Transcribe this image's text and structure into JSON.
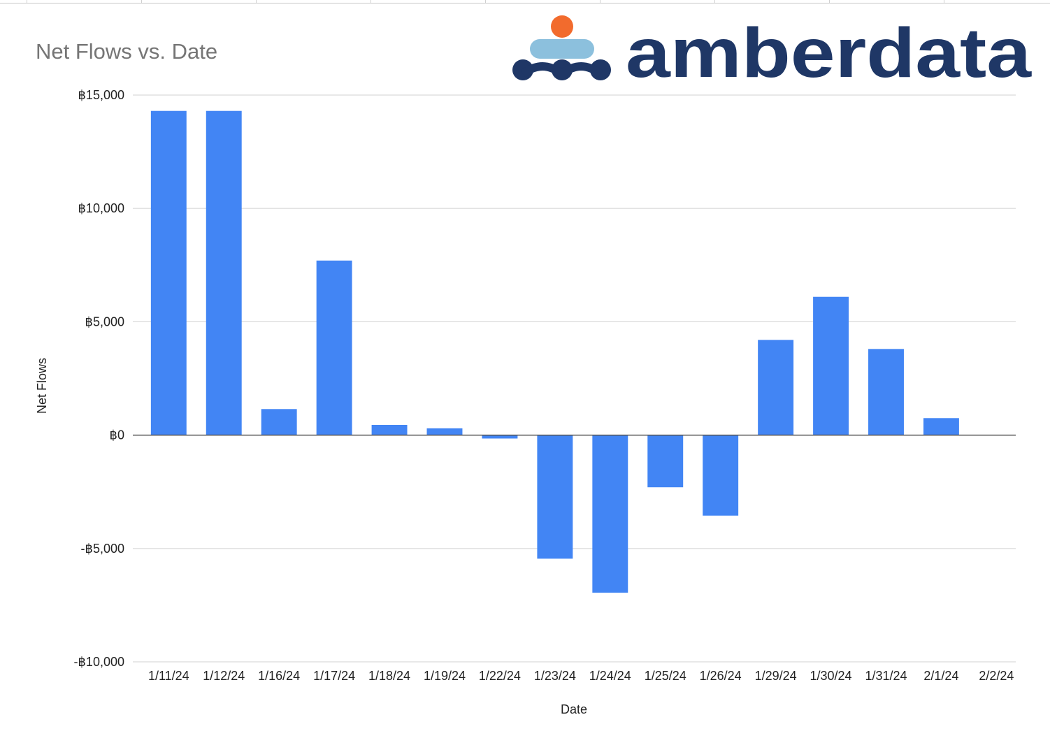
{
  "chart_data": {
    "type": "bar",
    "title": "Net Flows vs. Date",
    "xlabel": "Date",
    "ylabel": "Net Flows",
    "ylim": [
      -10000,
      15000
    ],
    "yticks": [
      15000,
      10000,
      5000,
      0,
      -5000,
      -10000
    ],
    "ytick_labels": [
      "฿15,000",
      "฿10,000",
      "฿5,000",
      "฿0",
      "-฿5,000",
      "-฿10,000"
    ],
    "categories": [
      "1/11/24",
      "1/12/24",
      "1/16/24",
      "1/17/24",
      "1/18/24",
      "1/19/24",
      "1/22/24",
      "1/23/24",
      "1/24/24",
      "1/25/24",
      "1/26/24",
      "1/29/24",
      "1/30/24",
      "1/31/24",
      "2/1/24",
      "2/2/24"
    ],
    "values": [
      14300,
      14300,
      1150,
      7700,
      450,
      300,
      -150,
      -5450,
      -6950,
      -2300,
      -3550,
      4200,
      6100,
      3800,
      750,
      0
    ],
    "bar_color": "#4285f4",
    "grid": true,
    "legend": "none"
  },
  "logo": {
    "text": "amberdata",
    "text_color": "#1f3766",
    "dot_orange": "#f26b2d",
    "dot_light_blue": "#8cc0dd",
    "dot_dark_blue": "#1f3766"
  }
}
